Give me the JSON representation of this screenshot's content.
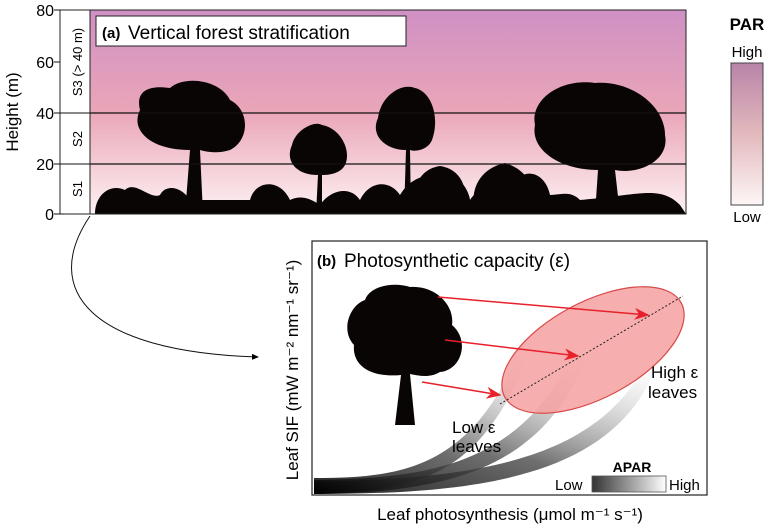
{
  "panel_a": {
    "label": "(a)",
    "title": "Vertical forest stratification",
    "y_axis_label": "Height (m)",
    "y_ticks": [
      "0",
      "20",
      "40",
      "60",
      "80"
    ],
    "strata": [
      "S1",
      "S2",
      "S3 (> 40 m)"
    ],
    "gradient_colors": {
      "top": "#cf90c4",
      "bottom": "#fdf2f3"
    }
  },
  "par_legend": {
    "title": "PAR",
    "high": "High",
    "low": "Low"
  },
  "panel_b": {
    "label": "(b)",
    "title": "Photosynthetic capacity (ε)",
    "y_axis_label": "Leaf SIF (mW m⁻² nm⁻¹ sr⁻¹)",
    "x_axis_label": "Leaf photosynthesis (μmol m⁻¹ s⁻¹)",
    "low_label_1": "Low ε",
    "low_label_2": "leaves",
    "high_label_1": "High ε",
    "high_label_2": "leaves",
    "apar_title": "APAR",
    "apar_low": "Low",
    "apar_high": "High",
    "arrow_color": "#e8202a",
    "ellipse_color": "#f4a0a0"
  }
}
